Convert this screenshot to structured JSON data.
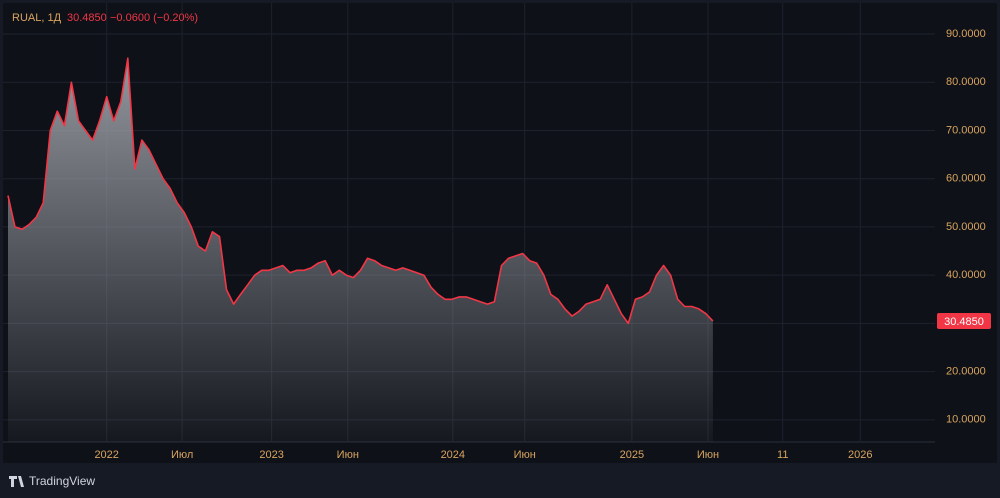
{
  "chart_data": {
    "type": "area",
    "symbol": "RUAL, 1Д",
    "price": "30.4850",
    "change": "−0.0600 (−0.20%)",
    "branding": "TradingView",
    "series": [
      {
        "color": "#f23645",
        "area_color": "#9a9da4",
        "values": [
          56.5,
          50,
          49.5,
          50.5,
          52,
          55,
          70,
          74,
          71,
          80,
          72,
          70,
          68,
          72,
          77,
          72,
          76,
          85,
          62,
          68,
          66,
          63,
          60,
          58,
          55,
          53,
          50,
          46,
          45,
          49,
          48,
          37,
          34,
          36,
          38,
          40,
          41,
          41,
          41.5,
          42,
          40.5,
          41,
          41,
          41.5,
          42.5,
          43,
          40,
          41,
          40,
          39.5,
          41,
          43.5,
          43,
          42,
          41.5,
          41,
          41.5,
          41,
          40.5,
          40,
          37.5,
          36,
          35,
          35,
          35.5,
          35.5,
          35,
          34.5,
          34,
          34.5,
          42,
          43.5,
          44,
          44.5,
          43,
          42.5,
          40,
          36,
          35,
          33,
          31.5,
          32.5,
          34,
          34.5,
          35,
          38,
          35,
          32,
          30,
          35,
          35.5,
          36.5,
          40,
          42,
          40,
          35,
          33.5,
          33.5,
          33,
          32,
          30.485
        ]
      }
    ],
    "xlim": [
      0,
      131.5
    ],
    "xticks": [
      {
        "value": 14,
        "label": "2022"
      },
      {
        "value": 24.7,
        "label": "Июл"
      },
      {
        "value": 37.4,
        "label": "2023"
      },
      {
        "value": 48.2,
        "label": "Июн"
      },
      {
        "value": 63.1,
        "label": "2024"
      },
      {
        "value": 73.3,
        "label": "Июн"
      },
      {
        "value": 88.5,
        "label": "2025"
      },
      {
        "value": 99.3,
        "label": "Июн"
      },
      {
        "value": 109.9,
        "label": "11"
      },
      {
        "value": 120.9,
        "label": "2026"
      }
    ],
    "ylim": [
      5.4,
      95.4
    ],
    "yticks": [
      {
        "value": 10,
        "label": "10.0000"
      },
      {
        "value": 20,
        "label": "20.0000"
      },
      {
        "value": 30,
        "label": "30.0000"
      },
      {
        "value": 40,
        "label": "40.0000"
      },
      {
        "value": 50,
        "label": "50.0000"
      },
      {
        "value": 60,
        "label": "60.0000"
      },
      {
        "value": 70,
        "label": "70.0000"
      },
      {
        "value": 80,
        "label": "80.0000"
      },
      {
        "value": 90,
        "label": "90.0000"
      }
    ],
    "grid": true
  }
}
